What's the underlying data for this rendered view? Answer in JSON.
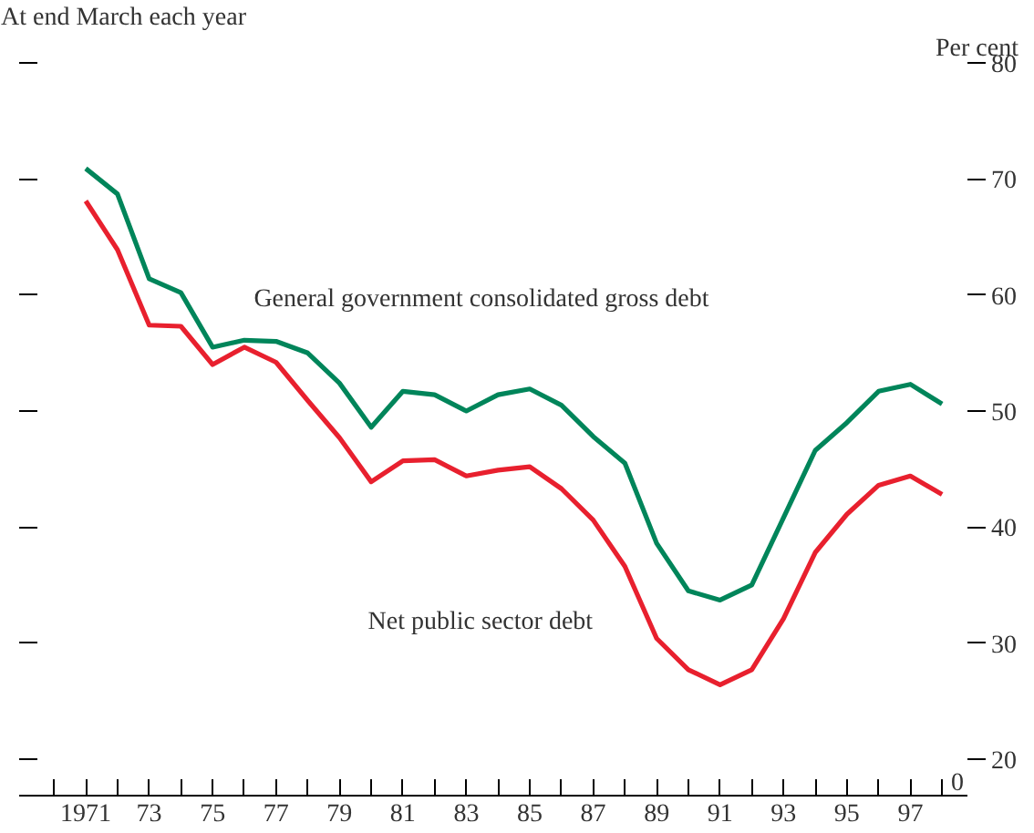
{
  "chart_data": {
    "type": "line",
    "subtitle": "At end March each year",
    "ylabel": "Per cent",
    "x": [
      1971,
      1972,
      1973,
      1974,
      1975,
      1976,
      1977,
      1978,
      1979,
      1980,
      1981,
      1982,
      1983,
      1984,
      1985,
      1986,
      1987,
      1988,
      1989,
      1990,
      1991,
      1992,
      1993,
      1994,
      1995,
      1996,
      1997,
      1998
    ],
    "series": [
      {
        "name": "General government consolidated gross debt",
        "color": "#00855a",
        "values": [
          70.9,
          68.7,
          61.4,
          60.2,
          55.5,
          56.1,
          56.0,
          55.0,
          52.4,
          48.6,
          51.7,
          51.4,
          50.0,
          51.4,
          51.9,
          50.5,
          47.8,
          45.5,
          38.6,
          34.5,
          33.7,
          35.0,
          40.8,
          46.6,
          49.0,
          51.7,
          52.3,
          50.6
        ]
      },
      {
        "name": "Net public sector debt",
        "color": "#e8202e",
        "values": [
          68.1,
          63.9,
          57.4,
          57.3,
          54.0,
          55.5,
          54.2,
          50.9,
          47.7,
          43.9,
          45.7,
          45.8,
          44.4,
          44.9,
          45.2,
          43.3,
          40.6,
          36.6,
          30.4,
          27.7,
          26.4,
          27.7,
          32.1,
          37.8,
          41.1,
          43.6,
          44.4,
          42.8
        ]
      }
    ],
    "xlim": [
      1968.9,
      1998.8
    ],
    "ylim": [
      16.85,
      80
    ],
    "xticks": [
      {
        "value": 1970,
        "label": null
      },
      {
        "value": 1971,
        "label": "1971"
      },
      {
        "value": 1972,
        "label": null
      },
      {
        "value": 1973,
        "label": "73"
      },
      {
        "value": 1974,
        "label": null
      },
      {
        "value": 1975,
        "label": "75"
      },
      {
        "value": 1976,
        "label": null
      },
      {
        "value": 1977,
        "label": "77"
      },
      {
        "value": 1978,
        "label": null
      },
      {
        "value": 1979,
        "label": "79"
      },
      {
        "value": 1980,
        "label": null
      },
      {
        "value": 1981,
        "label": "81"
      },
      {
        "value": 1982,
        "label": null
      },
      {
        "value": 1983,
        "label": "83"
      },
      {
        "value": 1984,
        "label": null
      },
      {
        "value": 1985,
        "label": "85"
      },
      {
        "value": 1986,
        "label": null
      },
      {
        "value": 1987,
        "label": "87"
      },
      {
        "value": 1988,
        "label": null
      },
      {
        "value": 1989,
        "label": "89"
      },
      {
        "value": 1990,
        "label": null
      },
      {
        "value": 1991,
        "label": "91"
      },
      {
        "value": 1992,
        "label": null
      },
      {
        "value": 1993,
        "label": "93"
      },
      {
        "value": 1994,
        "label": null
      },
      {
        "value": 1995,
        "label": "95"
      },
      {
        "value": 1996,
        "label": null
      },
      {
        "value": 1997,
        "label": "97"
      },
      {
        "value": 1998,
        "label": null
      }
    ],
    "yticks": [
      20,
      30,
      40,
      50,
      60,
      70,
      80
    ],
    "annotations": [
      "0"
    ],
    "line_style": "solid",
    "marker": "none"
  }
}
